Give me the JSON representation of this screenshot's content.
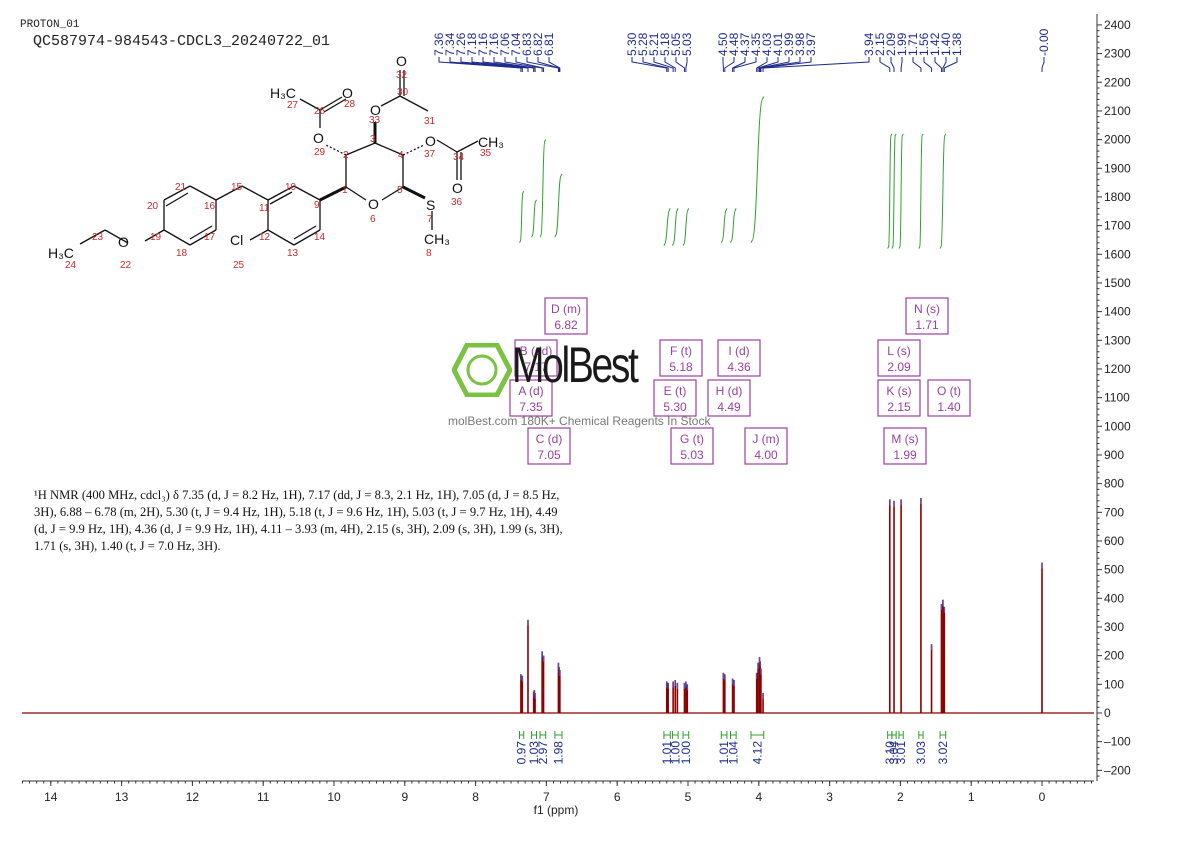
{
  "header": {
    "title_small": "PROTON_01",
    "title_main": "QC587974-984543-CDCL3_20240722_01"
  },
  "nmr_text": {
    "line1": "¹H NMR (400 MHz, cdcl₃) δ 7.35 (d, J = 8.2 Hz, 1H), 7.17 (dd, J = 8.3, 2.1 Hz, 1H), 7.05 (d, J = 8.5 Hz,",
    "line2": "3H), 6.88 – 6.78 (m, 2H), 5.30 (t, J = 9.4 Hz, 1H), 5.18 (t, J = 9.6 Hz, 1H), 5.03 (t, J = 9.7 Hz, 1H), 4.49",
    "line3": "(d, J = 9.9 Hz, 1H), 4.36 (d, J = 9.9 Hz, 1H), 4.11 – 3.93 (m, 4H), 2.15 (s, 3H), 2.09 (s, 3H), 1.99 (s, 3H),",
    "line4": "1.71 (s, 3H), 1.40 (t, J = 7.0 Hz, 3H)."
  },
  "watermark": {
    "brand": "MolBest",
    "tagline": "molBest.com  180K+ Chemical Reagents In Stock"
  },
  "colors": {
    "spectrum": "#8b0000",
    "integral": "#2ea02e",
    "peak_label": "#1f2a8c",
    "multiplet_box": "#9b3fa0",
    "atom_number": "#cc2a2a",
    "axis": "#333333",
    "logo_green": "#7cc242"
  },
  "chart_data": {
    "type": "line",
    "xlabel": "f1 (ppm)",
    "xlim": [
      14.5,
      -0.7
    ],
    "ylim": [
      -220,
      2420
    ],
    "x_ticks": [
      14,
      13,
      12,
      11,
      10,
      9,
      8,
      7,
      6,
      5,
      4,
      3,
      2,
      1,
      0
    ],
    "y_ticks": [
      2400,
      2300,
      2200,
      2100,
      2000,
      1900,
      1800,
      1700,
      1600,
      1500,
      1400,
      1300,
      1200,
      1100,
      1000,
      900,
      800,
      700,
      600,
      500,
      400,
      300,
      200,
      100,
      0,
      -100,
      -200
    ],
    "peaks": [
      {
        "ppm": 7.36,
        "height": 135
      },
      {
        "ppm": 7.34,
        "height": 130
      },
      {
        "ppm": 7.26,
        "height": 325
      },
      {
        "ppm": 7.18,
        "height": 75
      },
      {
        "ppm": 7.17,
        "height": 80
      },
      {
        "ppm": 7.16,
        "height": 70
      },
      {
        "ppm": 7.06,
        "height": 215
      },
      {
        "ppm": 7.04,
        "height": 200
      },
      {
        "ppm": 6.83,
        "height": 175
      },
      {
        "ppm": 6.82,
        "height": 160
      },
      {
        "ppm": 6.81,
        "height": 150
      },
      {
        "ppm": 5.3,
        "height": 110
      },
      {
        "ppm": 5.28,
        "height": 105
      },
      {
        "ppm": 5.21,
        "height": 110
      },
      {
        "ppm": 5.18,
        "height": 115
      },
      {
        "ppm": 5.15,
        "height": 105
      },
      {
        "ppm": 5.05,
        "height": 105
      },
      {
        "ppm": 5.03,
        "height": 110
      },
      {
        "ppm": 5.01,
        "height": 100
      },
      {
        "ppm": 4.5,
        "height": 140
      },
      {
        "ppm": 4.48,
        "height": 135
      },
      {
        "ppm": 4.37,
        "height": 120
      },
      {
        "ppm": 4.35,
        "height": 115
      },
      {
        "ppm": 4.03,
        "height": 140
      },
      {
        "ppm": 4.01,
        "height": 175
      },
      {
        "ppm": 3.99,
        "height": 195
      },
      {
        "ppm": 3.98,
        "height": 180
      },
      {
        "ppm": 3.97,
        "height": 155
      },
      {
        "ppm": 3.94,
        "height": 70
      },
      {
        "ppm": 2.15,
        "height": 745
      },
      {
        "ppm": 2.09,
        "height": 740
      },
      {
        "ppm": 1.99,
        "height": 745
      },
      {
        "ppm": 1.71,
        "height": 750
      },
      {
        "ppm": 1.56,
        "height": 240
      },
      {
        "ppm": 1.42,
        "height": 380
      },
      {
        "ppm": 1.4,
        "height": 395
      },
      {
        "ppm": 1.38,
        "height": 370
      },
      {
        "ppm": 0.0,
        "height": 525
      }
    ],
    "peak_labels": [
      {
        "text": "7.36",
        "ppm": 7.36
      },
      {
        "text": "7.34",
        "ppm": 7.34
      },
      {
        "text": "7.26",
        "ppm": 7.26
      },
      {
        "text": "7.18",
        "ppm": 7.18
      },
      {
        "text": "7.16",
        "ppm": 7.16
      },
      {
        "text": "7.16",
        "ppm": 7.16
      },
      {
        "text": "7.06",
        "ppm": 7.06
      },
      {
        "text": "7.04",
        "ppm": 7.04
      },
      {
        "text": "6.83",
        "ppm": 6.83
      },
      {
        "text": "6.82",
        "ppm": 6.82
      },
      {
        "text": "6.81",
        "ppm": 6.81
      },
      {
        "text": "5.30",
        "ppm": 5.3
      },
      {
        "text": "5.28",
        "ppm": 5.28
      },
      {
        "text": "5.21",
        "ppm": 5.21
      },
      {
        "text": "5.18",
        "ppm": 5.18
      },
      {
        "text": "5.05",
        "ppm": 5.05
      },
      {
        "text": "5.03",
        "ppm": 5.03
      },
      {
        "text": "4.50",
        "ppm": 4.5
      },
      {
        "text": "4.48",
        "ppm": 4.48
      },
      {
        "text": "4.37",
        "ppm": 4.37
      },
      {
        "text": "4.35",
        "ppm": 4.35
      },
      {
        "text": "4.03",
        "ppm": 4.03
      },
      {
        "text": "4.01",
        "ppm": 4.01
      },
      {
        "text": "3.99",
        "ppm": 3.99
      },
      {
        "text": "3.98",
        "ppm": 3.98
      },
      {
        "text": "3.97",
        "ppm": 3.97
      },
      {
        "text": "3.94",
        "ppm": 3.94
      },
      {
        "text": "2.15",
        "ppm": 2.15
      },
      {
        "text": "2.09",
        "ppm": 2.09
      },
      {
        "text": "1.99",
        "ppm": 1.99
      },
      {
        "text": "1.71",
        "ppm": 1.71
      },
      {
        "text": "1.56",
        "ppm": 1.56
      },
      {
        "text": "1.42",
        "ppm": 1.42
      },
      {
        "text": "1.40",
        "ppm": 1.4
      },
      {
        "text": "1.38",
        "ppm": 1.38
      },
      {
        "text": "-0.00",
        "ppm": 0.0
      }
    ],
    "integrals": [
      {
        "value": "0.97",
        "from": 7.38,
        "to": 7.32,
        "low": 1640,
        "high": 1820
      },
      {
        "value": "1.03",
        "from": 7.21,
        "to": 7.14,
        "low": 1660,
        "high": 1790
      },
      {
        "value": "2.97",
        "from": 7.09,
        "to": 7.01,
        "low": 1660,
        "high": 2000
      },
      {
        "value": "1.98",
        "from": 6.88,
        "to": 6.78,
        "low": 1660,
        "high": 1880
      },
      {
        "value": "1.01",
        "from": 5.34,
        "to": 5.25,
        "low": 1630,
        "high": 1760
      },
      {
        "value": "1.00",
        "from": 5.22,
        "to": 5.14,
        "low": 1630,
        "high": 1760
      },
      {
        "value": "1.00",
        "from": 5.07,
        "to": 4.99,
        "low": 1630,
        "high": 1760
      },
      {
        "value": "1.01",
        "from": 4.53,
        "to": 4.45,
        "low": 1640,
        "high": 1760
      },
      {
        "value": "1.04",
        "from": 4.4,
        "to": 4.32,
        "low": 1640,
        "high": 1760
      },
      {
        "value": "4.12",
        "from": 4.11,
        "to": 3.93,
        "low": 1640,
        "high": 2150
      },
      {
        "value": "3.10",
        "from": 2.18,
        "to": 2.12,
        "low": 1620,
        "high": 2020
      },
      {
        "value": "3.04",
        "from": 2.12,
        "to": 2.06,
        "low": 1620,
        "high": 2020
      },
      {
        "value": "3.01",
        "from": 2.02,
        "to": 1.96,
        "low": 1620,
        "high": 2020
      },
      {
        "value": "3.03",
        "from": 1.74,
        "to": 1.68,
        "low": 1620,
        "high": 2020
      },
      {
        "value": "3.02",
        "from": 1.44,
        "to": 1.36,
        "low": 1620,
        "high": 2020
      }
    ],
    "multiplet_boxes": [
      {
        "label": "D (m)",
        "shift": "6.82"
      },
      {
        "label": "B (dd)",
        "shift": "7.17"
      },
      {
        "label": "A (d)",
        "shift": "7.35"
      },
      {
        "label": "C (d)",
        "shift": "7.05"
      },
      {
        "label": "F (t)",
        "shift": "5.18"
      },
      {
        "label": "E (t)",
        "shift": "5.30"
      },
      {
        "label": "G (t)",
        "shift": "5.03"
      },
      {
        "label": "I (d)",
        "shift": "4.36"
      },
      {
        "label": "H (d)",
        "shift": "4.49"
      },
      {
        "label": "J (m)",
        "shift": "4.00"
      },
      {
        "label": "N (s)",
        "shift": "1.71"
      },
      {
        "label": "L (s)",
        "shift": "2.09"
      },
      {
        "label": "K (s)",
        "shift": "2.15"
      },
      {
        "label": "O (t)",
        "shift": "1.40"
      },
      {
        "label": "M (s)",
        "shift": "1.99"
      }
    ]
  },
  "molecule": {
    "atoms": {
      "h3c_27": "H₃C",
      "n27": "27",
      "o26": "O",
      "n26": "26",
      "n28": "28",
      "o32": "O",
      "n32": "32",
      "n30": "30",
      "n31": "31",
      "n33": "33",
      "o33": "O",
      "n3": "3",
      "n2": "2",
      "o29": "O",
      "n29": "29",
      "n4": "4",
      "o37": "O",
      "n37": "37",
      "n34": "34",
      "ch3_35": "CH₃",
      "n35": "35",
      "o36": "O",
      "n36": "36",
      "n1": "1",
      "o6": "O",
      "n6": "6",
      "n5": "5",
      "s7": "S",
      "n7": "7",
      "ch3_8": "CH₃",
      "n8": "8",
      "n9": "9",
      "n10": "10",
      "n11": "11",
      "n12": "12",
      "n13": "13",
      "n14": "14",
      "n15": "15",
      "n16": "16",
      "n17": "17",
      "n18": "18",
      "n19": "19",
      "n20": "20",
      "n21": "21",
      "cl25": "Cl",
      "n25": "25",
      "o22": "O",
      "n22": "22",
      "n23": "23",
      "h3c_24": "H₃C",
      "n24": "24"
    }
  }
}
